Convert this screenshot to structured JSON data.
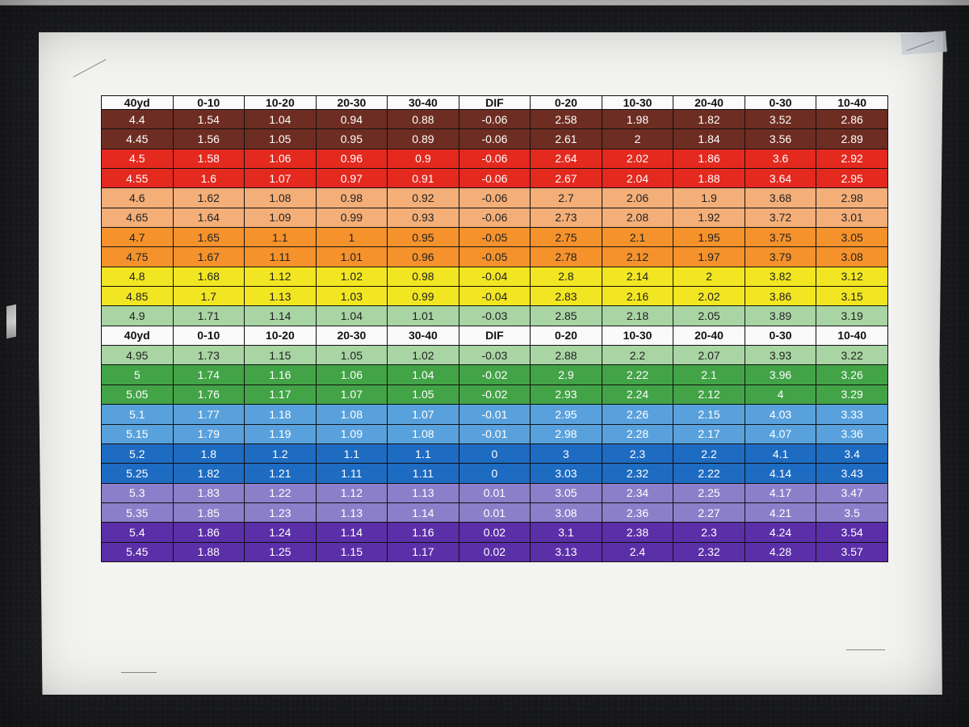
{
  "headers": [
    "40yd",
    "0-10",
    "10-20",
    "20-30",
    "30-40",
    "DIF",
    "0-20",
    "10-30",
    "20-40",
    "0-30",
    "10-40"
  ],
  "rows": [
    {
      "cells": [
        "4.4",
        "1.54",
        "1.04",
        "0.94",
        "0.88",
        "-0.06",
        "2.58",
        "1.98",
        "1.82",
        "3.52",
        "2.86"
      ],
      "color": "#6e2d22"
    },
    {
      "cells": [
        "4.45",
        "1.56",
        "1.05",
        "0.95",
        "0.89",
        "-0.06",
        "2.61",
        "2",
        "1.84",
        "3.56",
        "2.89"
      ],
      "color": "#6e2d22"
    },
    {
      "cells": [
        "4.5",
        "1.58",
        "1.06",
        "0.96",
        "0.9",
        "-0.06",
        "2.64",
        "2.02",
        "1.86",
        "3.6",
        "2.92"
      ],
      "color": "#e4291f"
    },
    {
      "cells": [
        "4.55",
        "1.6",
        "1.07",
        "0.97",
        "0.91",
        "-0.06",
        "2.67",
        "2.04",
        "1.88",
        "3.64",
        "2.95"
      ],
      "color": "#e4291f"
    },
    {
      "cells": [
        "4.6",
        "1.62",
        "1.08",
        "0.98",
        "0.92",
        "-0.06",
        "2.7",
        "2.06",
        "1.9",
        "3.68",
        "2.98"
      ],
      "color": "#f4ae78"
    },
    {
      "cells": [
        "4.65",
        "1.64",
        "1.09",
        "0.99",
        "0.93",
        "-0.06",
        "2.73",
        "2.08",
        "1.92",
        "3.72",
        "3.01"
      ],
      "color": "#f4ae78"
    },
    {
      "cells": [
        "4.7",
        "1.65",
        "1.1",
        "1",
        "0.95",
        "-0.05",
        "2.75",
        "2.1",
        "1.95",
        "3.75",
        "3.05"
      ],
      "color": "#f5922c"
    },
    {
      "cells": [
        "4.75",
        "1.67",
        "1.11",
        "1.01",
        "0.96",
        "-0.05",
        "2.78",
        "2.12",
        "1.97",
        "3.79",
        "3.08"
      ],
      "color": "#f5922c"
    },
    {
      "cells": [
        "4.8",
        "1.68",
        "1.12",
        "1.02",
        "0.98",
        "-0.04",
        "2.8",
        "2.14",
        "2",
        "3.82",
        "3.12"
      ],
      "color": "#f2e622"
    },
    {
      "cells": [
        "4.85",
        "1.7",
        "1.13",
        "1.03",
        "0.99",
        "-0.04",
        "2.83",
        "2.16",
        "2.02",
        "3.86",
        "3.15"
      ],
      "color": "#f2e622"
    },
    {
      "cells": [
        "4.9",
        "1.71",
        "1.14",
        "1.04",
        "1.01",
        "-0.03",
        "2.85",
        "2.18",
        "2.05",
        "3.89",
        "3.19"
      ],
      "color": "#a8d5a3"
    },
    {
      "header": true
    },
    {
      "cells": [
        "4.95",
        "1.73",
        "1.15",
        "1.05",
        "1.02",
        "-0.03",
        "2.88",
        "2.2",
        "2.07",
        "3.93",
        "3.22"
      ],
      "color": "#a8d5a3"
    },
    {
      "cells": [
        "5",
        "1.74",
        "1.16",
        "1.06",
        "1.04",
        "-0.02",
        "2.9",
        "2.22",
        "2.1",
        "3.96",
        "3.26"
      ],
      "color": "#43a347"
    },
    {
      "cells": [
        "5.05",
        "1.76",
        "1.17",
        "1.07",
        "1.05",
        "-0.02",
        "2.93",
        "2.24",
        "2.12",
        "4",
        "3.29"
      ],
      "color": "#43a347"
    },
    {
      "cells": [
        "5.1",
        "1.77",
        "1.18",
        "1.08",
        "1.07",
        "-0.01",
        "2.95",
        "2.26",
        "2.15",
        "4.03",
        "3.33"
      ],
      "color": "#59a1dc"
    },
    {
      "cells": [
        "5.15",
        "1.79",
        "1.19",
        "1.09",
        "1.08",
        "-0.01",
        "2.98",
        "2.28",
        "2.17",
        "4.07",
        "3.36"
      ],
      "color": "#59a1dc"
    },
    {
      "cells": [
        "5.2",
        "1.8",
        "1.2",
        "1.1",
        "1.1",
        "0",
        "3",
        "2.3",
        "2.2",
        "4.1",
        "3.4"
      ],
      "color": "#1e6bc2"
    },
    {
      "cells": [
        "5.25",
        "1.82",
        "1.21",
        "1.11",
        "1.11",
        "0",
        "3.03",
        "2.32",
        "2.22",
        "4.14",
        "3.43"
      ],
      "color": "#1e6bc2"
    },
    {
      "cells": [
        "5.3",
        "1.83",
        "1.22",
        "1.12",
        "1.13",
        "0.01",
        "3.05",
        "2.34",
        "2.25",
        "4.17",
        "3.47"
      ],
      "color": "#8c7fc9"
    },
    {
      "cells": [
        "5.35",
        "1.85",
        "1.23",
        "1.13",
        "1.14",
        "0.01",
        "3.08",
        "2.36",
        "2.27",
        "4.21",
        "3.5"
      ],
      "color": "#8c7fc9"
    },
    {
      "cells": [
        "5.4",
        "1.86",
        "1.24",
        "1.14",
        "1.16",
        "0.02",
        "3.1",
        "2.38",
        "2.3",
        "4.24",
        "3.54"
      ],
      "color": "#5b2fa8"
    },
    {
      "cells": [
        "5.45",
        "1.88",
        "1.25",
        "1.15",
        "1.17",
        "0.02",
        "3.13",
        "2.4",
        "2.32",
        "4.28",
        "3.57"
      ],
      "color": "#5b2fa8"
    }
  ]
}
